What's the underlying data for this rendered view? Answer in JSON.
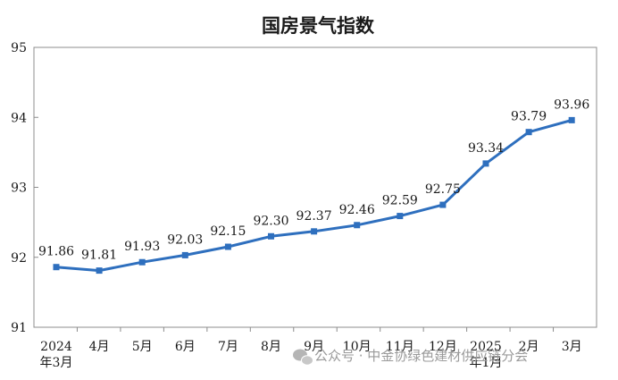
{
  "chart_data": {
    "type": "line",
    "title": "国房景气指数",
    "xlabel": "",
    "ylabel": "",
    "categories": [
      "2024年3月",
      "4月",
      "5月",
      "6月",
      "7月",
      "8月",
      "9月",
      "10月",
      "11月",
      "12月",
      "2025年1月",
      "2月",
      "3月"
    ],
    "category_lines": [
      [
        "2024",
        "年3月"
      ],
      [
        "4月"
      ],
      [
        "5月"
      ],
      [
        "6月"
      ],
      [
        "7月"
      ],
      [
        "8月"
      ],
      [
        "9月"
      ],
      [
        "10月"
      ],
      [
        "11月"
      ],
      [
        "12月"
      ],
      [
        "2025",
        "年1月"
      ],
      [
        "2月"
      ],
      [
        "3月"
      ]
    ],
    "series": [
      {
        "values": [
          91.86,
          91.81,
          91.93,
          92.03,
          92.15,
          92.3,
          92.37,
          92.46,
          92.59,
          92.75,
          93.34,
          93.79,
          93.96
        ]
      }
    ],
    "data_labels": [
      "91.86",
      "91.81",
      "91.93",
      "92.03",
      "92.15",
      "92.30",
      "92.37",
      "92.46",
      "92.59",
      "92.75",
      "93.34",
      "93.79",
      "93.96"
    ],
    "yticks": [
      91,
      92,
      93,
      94,
      95
    ],
    "ylim": [
      91,
      95
    ],
    "grid": false,
    "legend": "none",
    "line_color": "#2e6fbe",
    "axis_color": "#8c8c8c"
  },
  "watermark": {
    "text": "公众号 · 中金协绿色建材供应链分会",
    "icon": "wechat-icon"
  }
}
